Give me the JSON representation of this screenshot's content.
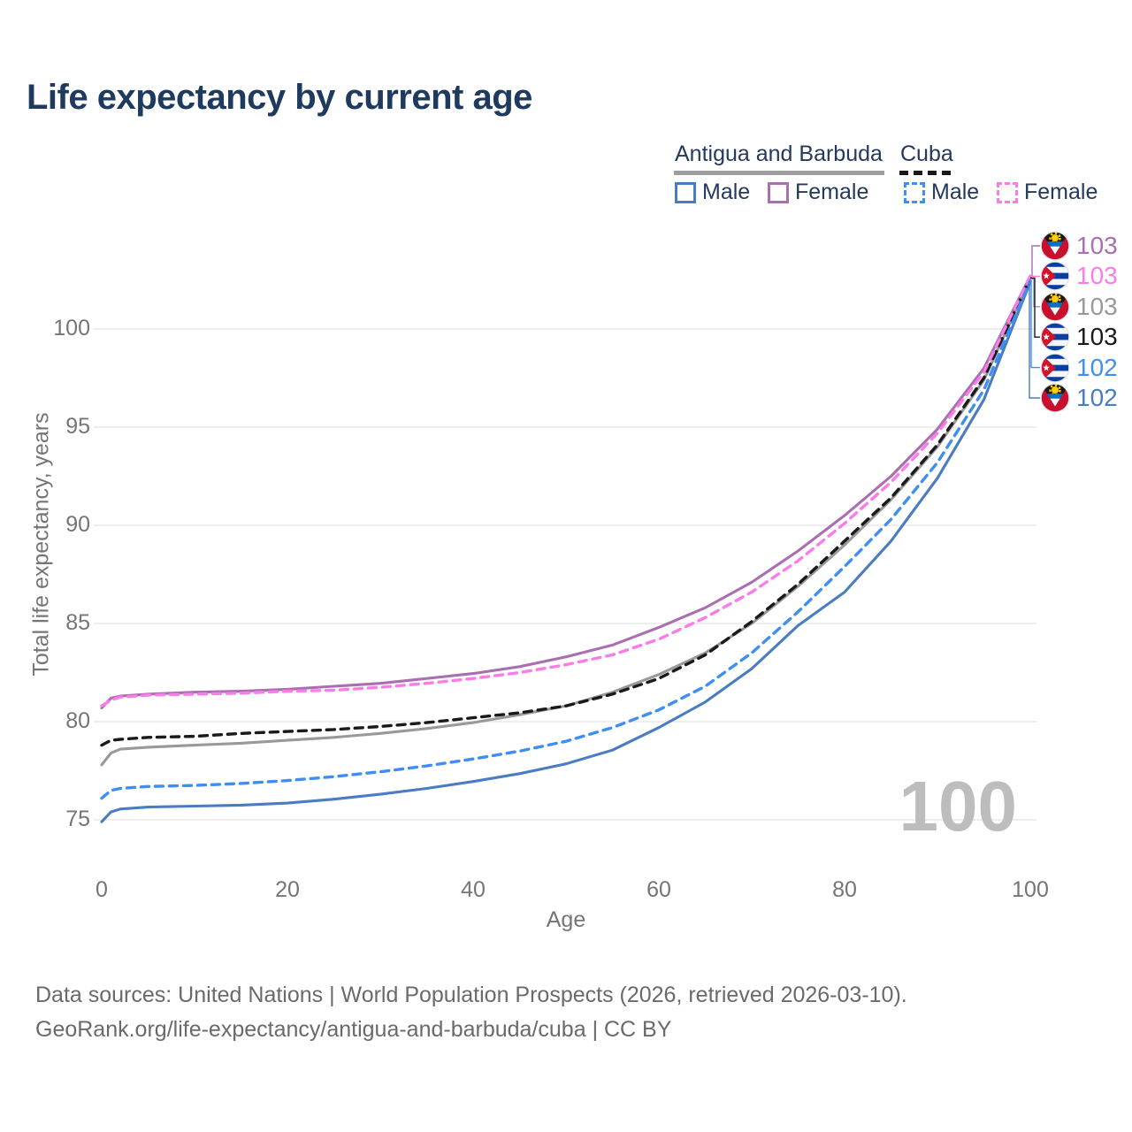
{
  "title": "Life expectancy by current age",
  "legend": {
    "groups": [
      {
        "label": "Antigua and Barbuda",
        "line_color": "#9e9e9e",
        "line_style": "solid",
        "items": [
          {
            "label": "Male",
            "color": "#4a7cc2",
            "style": "solid"
          },
          {
            "label": "Female",
            "color": "#a96fb0",
            "style": "solid"
          }
        ]
      },
      {
        "label": "Cuba",
        "line_color": "#161616",
        "line_style": "dashed",
        "items": [
          {
            "label": "Male",
            "color": "#3f8ef4",
            "style": "dashed"
          },
          {
            "label": "Female",
            "color": "#f97ce8",
            "style": "dashed"
          }
        ]
      }
    ]
  },
  "chart_data": {
    "type": "line",
    "title": "Life expectancy by current age",
    "xlabel": "Age",
    "ylabel": "Total life expectancy, years",
    "x_ticks": [
      0,
      20,
      40,
      60,
      80,
      100
    ],
    "y_ticks": [
      75,
      80,
      85,
      90,
      95,
      100
    ],
    "xlim": [
      0,
      100
    ],
    "ylim": [
      73.5,
      104
    ],
    "grid": "horizontal",
    "legend_position": "top-right",
    "age_counter": "100",
    "x": [
      0,
      1,
      2,
      5,
      10,
      15,
      20,
      25,
      30,
      35,
      40,
      45,
      50,
      55,
      60,
      65,
      70,
      75,
      80,
      85,
      90,
      95,
      100
    ],
    "series": [
      {
        "name": "Antigua and Barbuda Total",
        "color": "#999999",
        "dash": false,
        "values": [
          77.8,
          78.4,
          78.6,
          78.7,
          78.8,
          78.9,
          79.05,
          79.2,
          79.4,
          79.65,
          79.95,
          80.35,
          80.8,
          81.5,
          82.4,
          83.5,
          85.0,
          86.9,
          89.0,
          91.3,
          94.0,
          97.4,
          102.55
        ]
      },
      {
        "name": "Antigua and Barbuda Female",
        "color": "#a96fb0",
        "dash": false,
        "values": [
          80.7,
          81.2,
          81.3,
          81.4,
          81.5,
          81.55,
          81.65,
          81.8,
          81.95,
          82.2,
          82.45,
          82.8,
          83.3,
          83.9,
          84.8,
          85.8,
          87.1,
          88.7,
          90.5,
          92.5,
          94.9,
          98.0,
          102.7
        ]
      },
      {
        "name": "Antigua and Barbuda Male",
        "color": "#4a7cc2",
        "dash": false,
        "values": [
          74.9,
          75.4,
          75.55,
          75.65,
          75.7,
          75.75,
          75.85,
          76.05,
          76.3,
          76.6,
          76.95,
          77.35,
          77.85,
          78.55,
          79.7,
          81.0,
          82.7,
          84.9,
          86.6,
          89.2,
          92.4,
          96.4,
          102.4
        ]
      },
      {
        "name": "Cuba Total",
        "color": "#1a1a1a",
        "dash": true,
        "values": [
          78.8,
          79.05,
          79.1,
          79.2,
          79.25,
          79.4,
          79.5,
          79.6,
          79.75,
          79.95,
          80.2,
          80.45,
          80.8,
          81.4,
          82.2,
          83.4,
          85.1,
          87.0,
          89.2,
          91.4,
          94.1,
          97.5,
          102.6
        ]
      },
      {
        "name": "Cuba Female",
        "color": "#f97ce8",
        "dash": true,
        "values": [
          80.8,
          81.1,
          81.25,
          81.35,
          81.4,
          81.45,
          81.55,
          81.6,
          81.75,
          81.95,
          82.2,
          82.5,
          82.9,
          83.4,
          84.2,
          85.3,
          86.6,
          88.2,
          90.1,
          92.2,
          94.7,
          97.8,
          102.7
        ]
      },
      {
        "name": "Cuba Male",
        "color": "#3f8ef4",
        "dash": true,
        "values": [
          76.1,
          76.5,
          76.6,
          76.7,
          76.75,
          76.85,
          77.0,
          77.2,
          77.45,
          77.75,
          78.1,
          78.5,
          79.0,
          79.7,
          80.6,
          81.8,
          83.5,
          85.6,
          87.9,
          90.3,
          93.2,
          96.9,
          102.45
        ]
      }
    ],
    "end_labels": [
      {
        "country": "antigua-and-barbuda",
        "series": "Antigua and Barbuda Female",
        "value": "103",
        "color": "#a96fb0"
      },
      {
        "country": "cuba",
        "series": "Cuba Female",
        "value": "103",
        "color": "#f97ce8"
      },
      {
        "country": "antigua-and-barbuda",
        "series": "Antigua and Barbuda Total",
        "value": "103",
        "color": "#999999"
      },
      {
        "country": "cuba",
        "series": "Cuba Total",
        "value": "103",
        "color": "#1a1a1a"
      },
      {
        "country": "cuba",
        "series": "Cuba Male",
        "value": "102",
        "color": "#3f8ef4"
      },
      {
        "country": "antigua-and-barbuda",
        "series": "Antigua and Barbuda Male",
        "value": "102",
        "color": "#4a7cc2"
      }
    ]
  },
  "footer": {
    "line1": "Data sources: United Nations | World Population Prospects (2026, retrieved 2026-03-10).",
    "line2": "GeoRank.org/life-expectancy/antigua-and-barbuda/cuba | CC BY"
  }
}
